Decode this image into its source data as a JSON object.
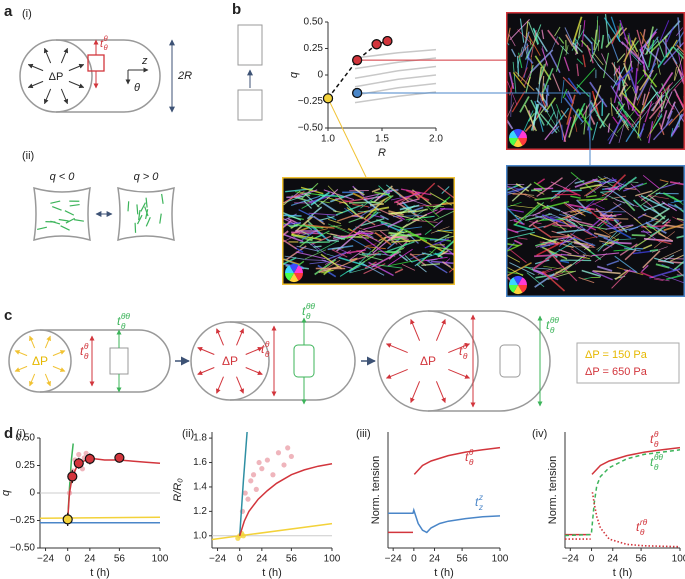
{
  "figure": {
    "panel_labels": [
      "a",
      "b",
      "c",
      "d"
    ],
    "a": {
      "sub_i": "(i)",
      "dp": "ΔP",
      "radius": "2R",
      "z": "z",
      "theta": "θ",
      "tension": {
        "base": "t",
        "sub": "θ",
        "sup": "θ"
      },
      "sub_ii": "(ii)",
      "q_neg": "q < 0",
      "q_pos": "q > 0"
    },
    "c": {
      "dp": "ΔP",
      "t_hoop": {
        "base": "t",
        "sub": "θ",
        "sup": "θ"
      },
      "t_ring": {
        "base": "t",
        "sub": "θ",
        "sup": "θθ"
      },
      "legend": [
        "ΔP = 150 Pa",
        "ΔP = 650 Pa"
      ]
    },
    "d": {
      "sub": [
        "(i)",
        "(ii)",
        "(iii)",
        "(iv)"
      ]
    }
  },
  "chart_data": [
    {
      "type": "scatter",
      "xlabel": "R",
      "ylabel": "q",
      "xlim": [
        1,
        2
      ],
      "xticks": [
        {
          "value": 1,
          "label": "1.0"
        },
        1.5,
        {
          "value": 2,
          "label": "2.0"
        }
      ],
      "ylim": [
        -0.5,
        0.5
      ],
      "yticks": [
        {
          "value": -0.5,
          "label": "−0.50"
        },
        {
          "value": -0.25,
          "label": "−0.25"
        },
        0,
        0.25,
        {
          "value": 0.5,
          "label": "0.50"
        }
      ],
      "series": [
        {
          "style": "solid",
          "color": "#c8c8c8",
          "x": [
            1.25,
            1.65,
            2.0
          ],
          "values": [
            0.16,
            0.21,
            0.24
          ]
        },
        {
          "style": "solid",
          "color": "#c8c8c8",
          "x": [
            1.25,
            1.65,
            2.0
          ],
          "values": [
            0.06,
            0.12,
            0.16
          ]
        },
        {
          "style": "solid",
          "color": "#c8c8c8",
          "x": [
            1.25,
            1.65,
            2.0
          ],
          "values": [
            -0.03,
            0.04,
            0.08
          ]
        },
        {
          "style": "solid",
          "color": "#c8c8c8",
          "x": [
            1.25,
            1.65,
            2.0
          ],
          "values": [
            -0.11,
            -0.04,
            0.0
          ]
        },
        {
          "style": "solid",
          "color": "#c8c8c8",
          "x": [
            1.25,
            1.65,
            2.0
          ],
          "values": [
            -0.19,
            -0.12,
            -0.08
          ]
        },
        {
          "style": "solid",
          "color": "#c8c8c8",
          "x": [
            1.25,
            1.65,
            2.0
          ],
          "values": [
            -0.26,
            -0.2,
            -0.16
          ]
        },
        {
          "style": "dashed",
          "color": "#111111",
          "x": [
            1.0,
            1.27,
            1.45,
            1.55
          ],
          "values": [
            -0.22,
            0.14,
            0.29,
            0.32
          ]
        },
        {
          "style": "markers",
          "colors": [
            "#f3d23a",
            "#d2353c",
            "#4a86c8",
            "#d2353c",
            "#d2353c"
          ],
          "x": [
            1.0,
            1.27,
            1.27,
            1.45,
            1.55
          ],
          "values": [
            -0.22,
            0.14,
            -0.17,
            0.29,
            0.32
          ]
        }
      ]
    },
    {
      "type": "line",
      "xlabel": "t (h)",
      "ylabel": "q",
      "xlim": [
        -30,
        100
      ],
      "xticks": [
        {
          "value": -24,
          "label": "−24"
        },
        0,
        24,
        56,
        100
      ],
      "ylim": [
        -0.5,
        0.5
      ],
      "yticks": [
        {
          "value": -0.5,
          "label": "−0.50"
        },
        {
          "value": -0.25,
          "label": "−0.25"
        },
        0,
        0.25,
        {
          "value": 0.5,
          "label": "0.50"
        }
      ],
      "reference_line": 0,
      "series": [
        {
          "style": "solid",
          "color": "#f3d23a",
          "x": [
            -30,
            100
          ],
          "values": [
            -0.23,
            -0.22
          ]
        },
        {
          "style": "solid",
          "color": "#4a86c8",
          "x": [
            -30,
            100
          ],
          "values": [
            -0.27,
            -0.27
          ]
        },
        {
          "style": "solid",
          "color": "#3cb45a",
          "x": [
            0,
            2,
            4,
            6
          ],
          "values": [
            -0.24,
            0.05,
            0.3,
            0.45
          ]
        },
        {
          "style": "dots",
          "color": "#eba3ab",
          "x": [
            2,
            4,
            6,
            8,
            10,
            12,
            14,
            16,
            18,
            20,
            22
          ],
          "values": [
            0.0,
            0.12,
            0.2,
            0.3,
            0.25,
            0.35,
            0.28,
            0.22,
            0.32,
            0.36,
            0.3
          ]
        },
        {
          "style": "solid",
          "color": "#d2353c",
          "x": [
            0,
            2,
            5,
            10,
            15,
            20,
            24,
            30,
            40,
            56,
            70,
            85,
            100
          ],
          "values": [
            -0.24,
            0.0,
            0.15,
            0.24,
            0.28,
            0.3,
            0.31,
            0.31,
            0.3,
            0.3,
            0.29,
            0.28,
            0.27
          ]
        },
        {
          "style": "markers",
          "colors": [
            "#f3d23a",
            "#d2353c",
            "#d2353c",
            "#d2353c",
            "#d2353c"
          ],
          "x": [
            0,
            5,
            12,
            24,
            56
          ],
          "values": [
            -0.24,
            0.15,
            0.27,
            0.31,
            0.32
          ],
          "errors": [
            0.06,
            0.06,
            0.05,
            0.05,
            0.02
          ]
        }
      ]
    },
    {
      "type": "line",
      "xlabel": "t (h)",
      "ylabel": "R/R₀",
      "xlim": [
        -30,
        100
      ],
      "xticks": [
        {
          "value": -24,
          "label": "−24"
        },
        0,
        24,
        56,
        100
      ],
      "ylim": [
        0.9,
        1.85
      ],
      "yticks": [
        {
          "value": 1,
          "label": "1.0"
        },
        1.2,
        1.4,
        1.6,
        1.8
      ],
      "reference_line": 1,
      "series": [
        {
          "style": "solid",
          "color": "#f3d23a",
          "x": [
            -30,
            100
          ],
          "values": [
            0.97,
            1.1
          ]
        },
        {
          "style": "dots",
          "color": "#eba3ab",
          "x": [
            3,
            6,
            9,
            12,
            15,
            18,
            21,
            24,
            30,
            36,
            42,
            48,
            52,
            56
          ],
          "values": [
            1.2,
            1.35,
            1.3,
            1.45,
            1.5,
            1.38,
            1.6,
            1.55,
            1.62,
            1.5,
            1.68,
            1.58,
            1.72,
            1.65
          ]
        },
        {
          "style": "dots",
          "color": "#f3d23a",
          "x": [
            -2,
            0,
            2,
            4
          ],
          "values": [
            0.98,
            1.0,
            1.02,
            1.0
          ]
        },
        {
          "style": "solid",
          "color": "#2e8fa3",
          "x": [
            0,
            4,
            8
          ],
          "values": [
            1.0,
            1.45,
            1.85
          ]
        },
        {
          "style": "solid",
          "color": "#d2353c",
          "x": [
            0,
            5,
            10,
            20,
            30,
            40,
            56,
            70,
            85,
            100
          ],
          "values": [
            1.0,
            1.12,
            1.2,
            1.3,
            1.37,
            1.43,
            1.5,
            1.54,
            1.57,
            1.59
          ]
        }
      ]
    },
    {
      "type": "line",
      "xlabel": "t (h)",
      "ylabel": "Norm. tension",
      "xlim": [
        -30,
        100
      ],
      "xticks": [
        {
          "value": -24,
          "label": "−24"
        },
        0,
        24,
        56,
        100
      ],
      "ylim": [
        0,
        2.6
      ],
      "series": [
        {
          "style": "solid",
          "color": "#d2353c",
          "label": {
            "base": "t",
            "sub": "θ",
            "sup": "θ"
          },
          "x": [
            -30,
            -1,
            0,
            0.5,
            10,
            20,
            40,
            60,
            80,
            100
          ],
          "values": [
            0.35,
            0.35,
            null,
            1.65,
            1.85,
            1.95,
            2.07,
            2.15,
            2.2,
            2.25
          ]
        },
        {
          "style": "solid",
          "color": "#4a86c8",
          "label": {
            "base": "t",
            "sub": "z",
            "sup": "z"
          },
          "x": [
            -30,
            -1,
            0,
            5,
            10,
            15,
            20,
            30,
            40,
            60,
            80,
            100
          ],
          "values": [
            0.78,
            0.78,
            0.85,
            0.55,
            0.4,
            0.35,
            0.45,
            0.55,
            0.6,
            0.66,
            0.7,
            0.72
          ]
        }
      ]
    },
    {
      "type": "line",
      "xlabel": "t (h)",
      "ylabel": "Norm. tension",
      "xlim": [
        -30,
        100
      ],
      "xticks": [
        {
          "value": -24,
          "label": "−24"
        },
        0,
        24,
        56,
        100
      ],
      "ylim": [
        0,
        2.6
      ],
      "series": [
        {
          "style": "solid",
          "color": "#d2353c",
          "label": {
            "base": "t",
            "sub": "θ",
            "sup": "θ"
          },
          "x": [
            -30,
            -1,
            0,
            0.5,
            10,
            20,
            40,
            60,
            80,
            100
          ],
          "values": [
            0.3,
            0.3,
            null,
            1.65,
            1.85,
            1.95,
            2.07,
            2.15,
            2.2,
            2.25
          ]
        },
        {
          "style": "dashed",
          "color": "#3cb45a",
          "label": {
            "base": "t",
            "sub": "θ",
            "sup": "θθ"
          },
          "x": [
            -30,
            -1,
            0,
            3,
            6,
            10,
            20,
            40,
            60,
            80,
            100
          ],
          "values": [
            0.28,
            0.3,
            0.35,
            1.0,
            1.4,
            1.6,
            1.8,
            2.0,
            2.1,
            2.15,
            2.2
          ]
        },
        {
          "style": "dotted",
          "color": "#d2353c",
          "label": {
            "base": "t",
            "sub": "θ",
            "sup": "rθ"
          },
          "x": [
            -30,
            -1,
            0,
            1,
            3,
            6,
            10,
            20,
            40,
            60,
            100
          ],
          "values": [
            0.2,
            0.2,
            null,
            1.25,
            1.0,
            0.7,
            0.45,
            0.2,
            0.08,
            0.05,
            0.03
          ]
        }
      ]
    }
  ]
}
